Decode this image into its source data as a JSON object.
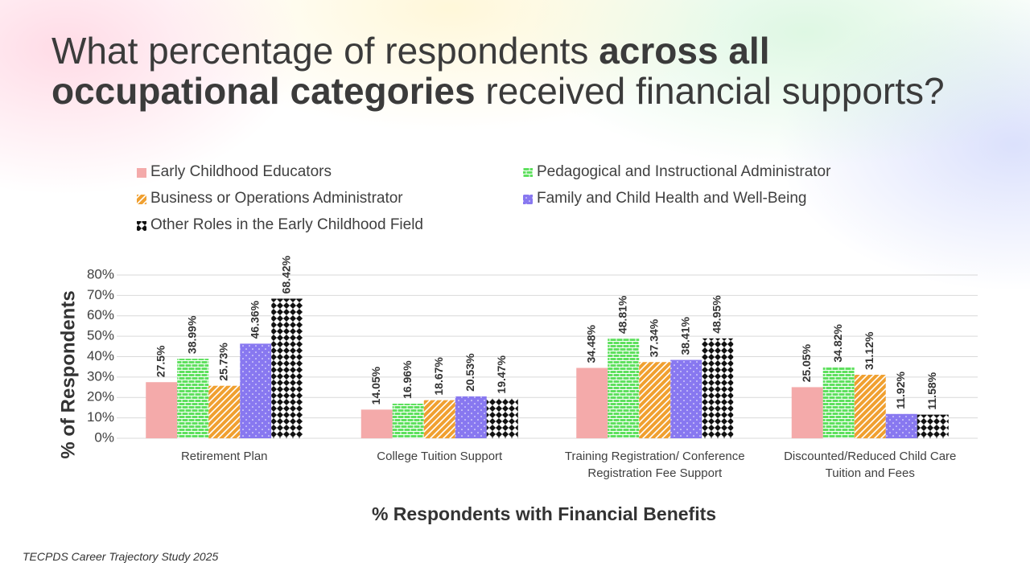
{
  "chart_data": {
    "type": "bar",
    "title": [
      "What percentage of respondents ",
      "across all occupational categories",
      " received financial supports?"
    ],
    "x_label": "% Respondents with Financial Benefits",
    "y_label": "% of Respondents",
    "source": "TECPDS Career Trajectory Study 2025",
    "categories": [
      "Retirement Plan",
      "College Tuition Support",
      "Training Registration/ Conference Registration Fee Support",
      "Discounted/Reduced Child Care Tuition and Fees"
    ],
    "series": [
      {
        "name": "Early Childhood Educators",
        "color": "#f4aaaa",
        "fill_pattern": "solid",
        "values": [
          27.5,
          14.05,
          34.48,
          25.05
        ],
        "value_labels": [
          "27.5%",
          "14.05%",
          "34.48%",
          "25.05%"
        ]
      },
      {
        "name": "Pedagogical and Instructional Administrator",
        "color": "#5ee05e",
        "fill_pattern": "bricks",
        "values": [
          38.99,
          16.96,
          48.81,
          34.82
        ],
        "value_labels": [
          "38.99%",
          "16.96%",
          "48.81%",
          "34.82%"
        ]
      },
      {
        "name": "Business or Operations Administrator",
        "color": "#f0a030",
        "fill_pattern": "stripes",
        "values": [
          25.73,
          18.67,
          37.34,
          31.12
        ],
        "value_labels": [
          "25.73%",
          "18.67%",
          "37.34%",
          "31.12%"
        ]
      },
      {
        "name": "Family and Child Health and Well-Being",
        "color": "#8878f0",
        "fill_pattern": "dots",
        "values": [
          46.36,
          20.53,
          38.41,
          11.92
        ],
        "value_labels": [
          "46.36%",
          "20.53%",
          "38.41%",
          "11.92%"
        ]
      },
      {
        "name": "Other Roles in the Early Childhood Field",
        "color": "#111111",
        "fill_pattern": "checker",
        "values": [
          68.42,
          19.47,
          48.95,
          11.58
        ],
        "value_labels": [
          "68.42%",
          "19.47%",
          "48.95%",
          "11.58%"
        ]
      }
    ],
    "ylim": [
      0,
      80
    ],
    "yticks": [
      {
        "value": 0,
        "label": "0%"
      },
      {
        "value": 10,
        "label": "10%"
      },
      {
        "value": 20,
        "label": "20%"
      },
      {
        "value": 30,
        "label": "30%"
      },
      {
        "value": 40,
        "label": "40%"
      },
      {
        "value": 50,
        "label": "50%"
      },
      {
        "value": 60,
        "label": "60%"
      },
      {
        "value": 70,
        "label": "70%"
      },
      {
        "value": 80,
        "label": "80%"
      }
    ],
    "grid": true,
    "legend_position": "top"
  }
}
